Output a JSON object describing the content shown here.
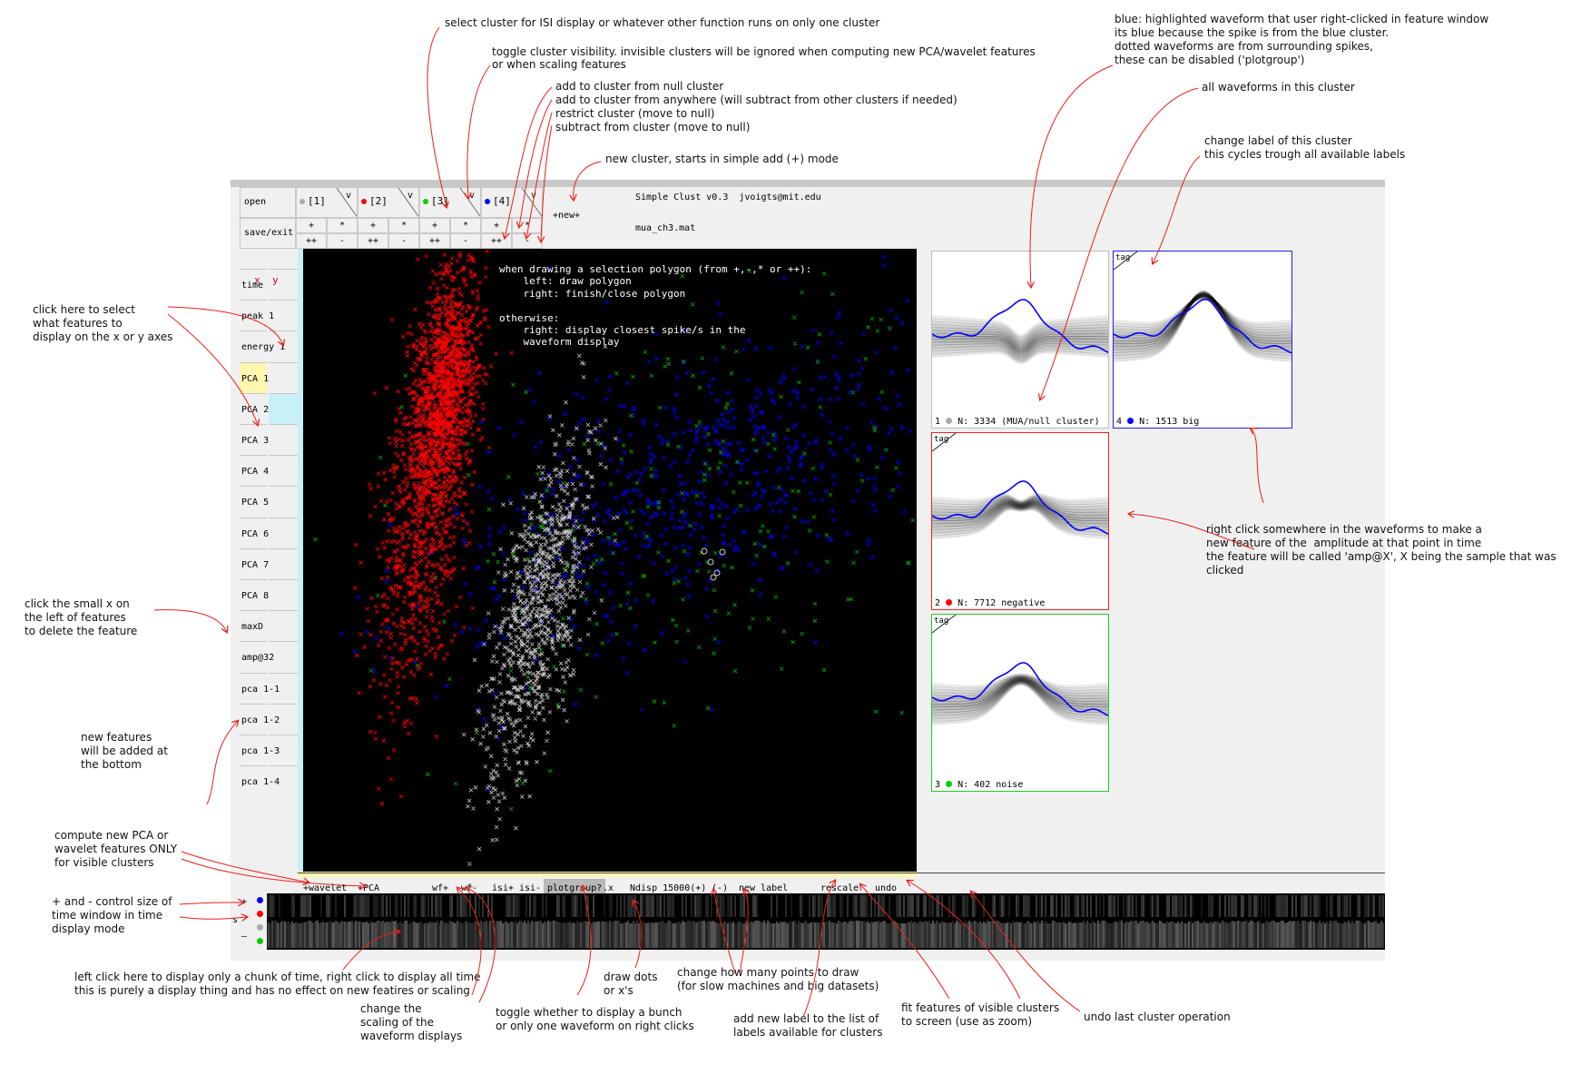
{
  "app": {
    "title": "Simple Clust v0.3",
    "info": "Simple Clust v0.3  jvoigts@mit.edu",
    "filename": "mua_ch3.mat"
  },
  "toolbar": {
    "open_label": "open",
    "save_label": "save/exit",
    "new_label": "+new+"
  },
  "clusters": [
    {
      "label": "[1]",
      "color": "#aaaaaa",
      "v": "v",
      "ops": {
        "add": "+",
        "mult": "*",
        "addall": "++",
        "sub": "-"
      }
    },
    {
      "label": "[2]",
      "color": "#ff0000",
      "v": "v",
      "ops": {
        "add": "+",
        "mult": "*",
        "addall": "++",
        "sub": "-"
      }
    },
    {
      "label": "[3]",
      "color": "#00cc00",
      "v": "v",
      "ops": {
        "add": "+",
        "mult": "*",
        "addall": "++",
        "sub": "-"
      }
    },
    {
      "label": "[4]",
      "color": "#0000ff",
      "v": "v",
      "ops": {
        "add": "+",
        "mult": "*",
        "addall": "++",
        "sub": "-"
      }
    }
  ],
  "features": {
    "x_label": "x",
    "y_label": "y",
    "items": [
      "time",
      "peak 1",
      "energy 1",
      "PCA 1",
      "PCA 2",
      "PCA 3",
      "PCA 4",
      "PCA 5",
      "PCA 6",
      "PCA 7",
      "PCA 8",
      "maxD",
      "amp@32",
      "pca 1-1",
      "pca 1-2",
      "pca 1-3",
      "pca 1-4"
    ],
    "selected_x": "PCA 1",
    "selected_y": "PCA 2"
  },
  "plot_help": "when drawing a selection polygon (from +,-,* or ++):\n    left: draw polygon\n    right: finish/close polygon\n\notherwise:\n    right: display closest spike/s in the\n    waveform display",
  "bottom_buttons": {
    "wavelet": "+wavelet",
    "pca": "+PCA",
    "wfplus": "wf+",
    "wfminus": "wf-",
    "isiplus": "isi+",
    "isiminus": "isi-",
    "plotgroup": "plotgroup?",
    "dots": ".x",
    "ndisp": "Ndisp 15000(+)",
    "ndisp_minus": "(-)",
    "newlabel": "new label",
    "rescale": "rescale",
    "undo": "undo"
  },
  "time_controls": {
    "plus": "+",
    "s": "s",
    "minus": "–"
  },
  "waveforms": [
    {
      "num": "1",
      "text": "N: 3334 (MUA/null cluster)",
      "color": "#aaaaaa",
      "tag": ""
    },
    {
      "num": "4",
      "text": "N: 1513 big",
      "color": "#0000ff",
      "tag": "tag"
    },
    {
      "num": "2",
      "text": "N: 7712 negative",
      "color": "#ff0000",
      "tag": "tag"
    },
    {
      "num": "3",
      "text": "N: 402 noise",
      "color": "#00cc00",
      "tag": "tag"
    }
  ],
  "annotations": {
    "a1": "select cluster for ISI display or whatever other function runs on only one cluster",
    "a2": "toggle cluster visibility. invisible clusters will be ignored when computing new PCA/wavelet features\nor when scaling features",
    "a3": "add to cluster from null cluster\nadd to cluster from anywhere (will subtract from other clusters if needed)\nrestrict cluster (move to null)\nsubtract from cluster (move to null)",
    "a4": "new cluster, starts in simple add (+) mode",
    "a5": "blue: highlighted waveform that user right-clicked in feature window\nits blue because the spike is from the blue cluster.\ndotted waveforms are from surrounding spikes,\nthese can be disabled ('plotgroup')",
    "a6": "all waveforms in this cluster",
    "a7": "change label of this cluster\nthis cycles trough all available labels",
    "a8": "click here to select\nwhat features to\ndisplay on the x or y axes",
    "a9": "click the small x on\nthe left of features\nto delete the feature",
    "a10": "new features\nwill be added at\nthe bottom",
    "a11": "compute new PCA or\nwavelet features ONLY\nfor visible clusters",
    "a12": "+ and - control size of\ntime window in time\ndisplay mode",
    "a13": "right click somewhere in the waveforms to make a\nnew feature of the  amplitude at that point in time\nthe feature will be called 'amp@X', X being the sample that was\nclicked",
    "a14": "left click here to display only a chunk of time, right click to display all time\nthis is purely a display thing and has no effect on new featires or scaling",
    "a15": "change the\nscaling of the\nwaveform displays",
    "a16": "toggle whether to display a bunch\nor only one waveform on right clicks",
    "a17": "draw dots\nor x's",
    "a18": "change how many points to draw\n(for slow machines and big datasets)",
    "a19": "add new label to the list of\nlabels available for clusters",
    "a20": "fit features of visible clusters\nto screen (use as zoom)",
    "a21": "undo last cluster operation"
  },
  "colors": {
    "arrow": "#e8201c",
    "plot_bg": "#000000",
    "highlight_x": "#fff6b0",
    "highlight_y": "#c8f0f8"
  }
}
